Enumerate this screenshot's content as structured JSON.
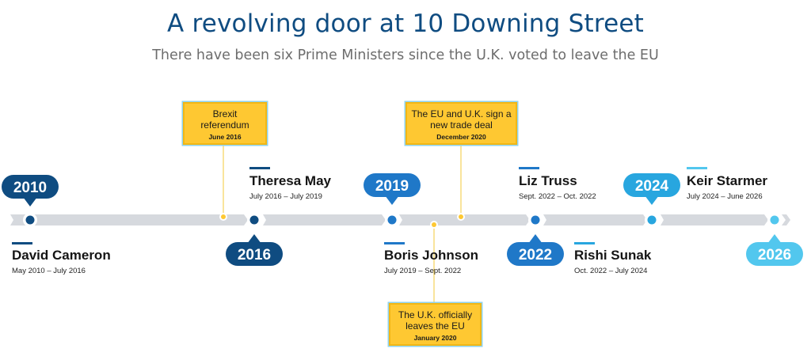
{
  "title": "A revolving door at 10 Downing Street",
  "subtitle": "There have been six Prime Ministers since the U.K. voted to leave the EU",
  "colors": {
    "track": "#d6d9de",
    "dark_blue": "#0f4c81",
    "mid_blue": "#1f78c8",
    "light_blue": "#28a6df",
    "cyan": "#52c7ee",
    "event_fill": "#fec832",
    "event_border": "#8fd3ee"
  },
  "years": [
    {
      "label": "2010",
      "color": "#0f4c81"
    },
    {
      "label": "2016",
      "color": "#0f4c81"
    },
    {
      "label": "2019",
      "color": "#1f78c8"
    },
    {
      "label": "2022",
      "color": "#1f78c8"
    },
    {
      "label": "2024",
      "color": "#28a6df"
    },
    {
      "label": "2026",
      "color": "#52c7ee"
    }
  ],
  "prime_ministers": [
    {
      "name": "David Cameron",
      "term": "May 2010 – July 2016",
      "color": "#0f4c81"
    },
    {
      "name": "Theresa May",
      "term": "July 2016 – July 2019",
      "color": "#0f4c81"
    },
    {
      "name": "Boris Johnson",
      "term": "July 2019 – Sept. 2022",
      "color": "#1f78c8"
    },
    {
      "name": "Liz Truss",
      "term": "Sept. 2022 – Oct. 2022",
      "color": "#1f78c8"
    },
    {
      "name": "Rishi Sunak",
      "term": "Oct. 2022 – July 2024",
      "color": "#28a6df"
    },
    {
      "name": "Keir Starmer",
      "term": "July 2024 – June 2026",
      "color": "#52c7ee"
    }
  ],
  "events": [
    {
      "title_line1": "Brexit",
      "title_line2": "referendum",
      "date": "June 2016"
    },
    {
      "title_line1": "The U.K. officially",
      "title_line2": "leaves the EU",
      "date": "January 2020"
    },
    {
      "title_line1": "The EU and U.K. sign a",
      "title_line2": "new trade deal",
      "date": "December 2020"
    }
  ]
}
